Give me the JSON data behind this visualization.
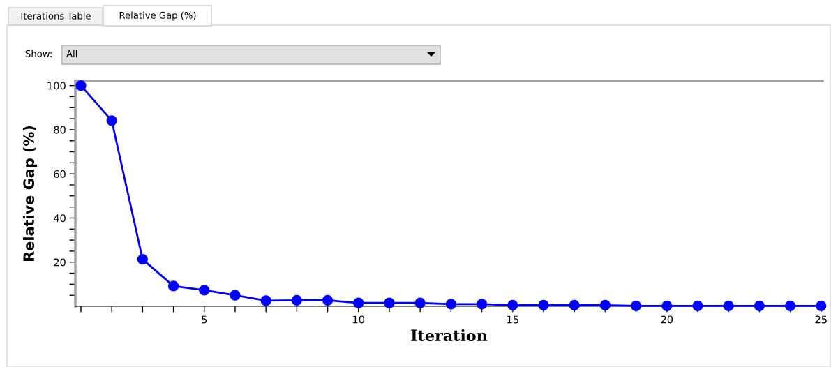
{
  "chart_data": {
    "type": "line",
    "xlabel": "Iteration",
    "ylabel": "Relative Gap (%)",
    "annotations": [
      "Iterations Table",
      "Relative Gap (%)",
      "Show:",
      "All"
    ],
    "x": [
      1,
      2,
      3,
      4,
      5,
      6,
      7,
      8,
      9,
      10,
      11,
      12,
      13,
      14,
      15,
      16,
      17,
      18,
      19,
      20,
      21,
      22,
      23,
      24,
      25
    ],
    "series": [
      {
        "color": "#0000ff",
        "values": [
          100,
          84.1,
          21.3,
          9.2,
          7.3,
          5.0,
          2.6,
          2.7,
          2.7,
          1.5,
          1.5,
          1.5,
          1.0,
          1.0,
          0.5,
          0.5,
          0.5,
          0.5,
          0.2,
          0.2,
          0.2,
          0.2,
          0.2,
          0.2,
          0.2
        ]
      }
    ],
    "xlim": [
      0.82,
      25.05
    ],
    "ylim": [
      0,
      102.1
    ],
    "xticks": [
      {
        "value": 1,
        "label": null
      },
      {
        "value": 2,
        "label": null
      },
      {
        "value": 3,
        "label": null
      },
      {
        "value": 4,
        "label": null
      },
      5,
      {
        "value": 6,
        "label": null
      },
      {
        "value": 7,
        "label": null
      },
      {
        "value": 8,
        "label": null
      },
      {
        "value": 9,
        "label": null
      },
      10,
      {
        "value": 11,
        "label": null
      },
      {
        "value": 12,
        "label": null
      },
      {
        "value": 13,
        "label": null
      },
      {
        "value": 14,
        "label": null
      },
      15,
      {
        "value": 16,
        "label": null
      },
      {
        "value": 17,
        "label": null
      },
      {
        "value": 18,
        "label": null
      },
      {
        "value": 19,
        "label": null
      },
      20,
      {
        "value": 21,
        "label": null
      },
      {
        "value": 22,
        "label": null
      },
      {
        "value": 23,
        "label": null
      },
      {
        "value": 24,
        "label": null
      },
      25
    ],
    "yticks": [
      {
        "value": 5,
        "label": null
      },
      {
        "value": 10,
        "label": null
      },
      {
        "value": 15,
        "label": null
      },
      20,
      {
        "value": 25,
        "label": null
      },
      {
        "value": 30,
        "label": null
      },
      {
        "value": 35,
        "label": null
      },
      40,
      {
        "value": 45,
        "label": null
      },
      {
        "value": 50,
        "label": null
      },
      {
        "value": 55,
        "label": null
      },
      60,
      {
        "value": 65,
        "label": null
      },
      {
        "value": 70,
        "label": null
      },
      {
        "value": 75,
        "label": null
      },
      80,
      {
        "value": 85,
        "label": null
      },
      {
        "value": 90,
        "label": null
      },
      {
        "value": 95,
        "label": null
      },
      100
    ],
    "grid": false,
    "legend": false,
    "marker": "circle",
    "line_style": "solid"
  }
}
